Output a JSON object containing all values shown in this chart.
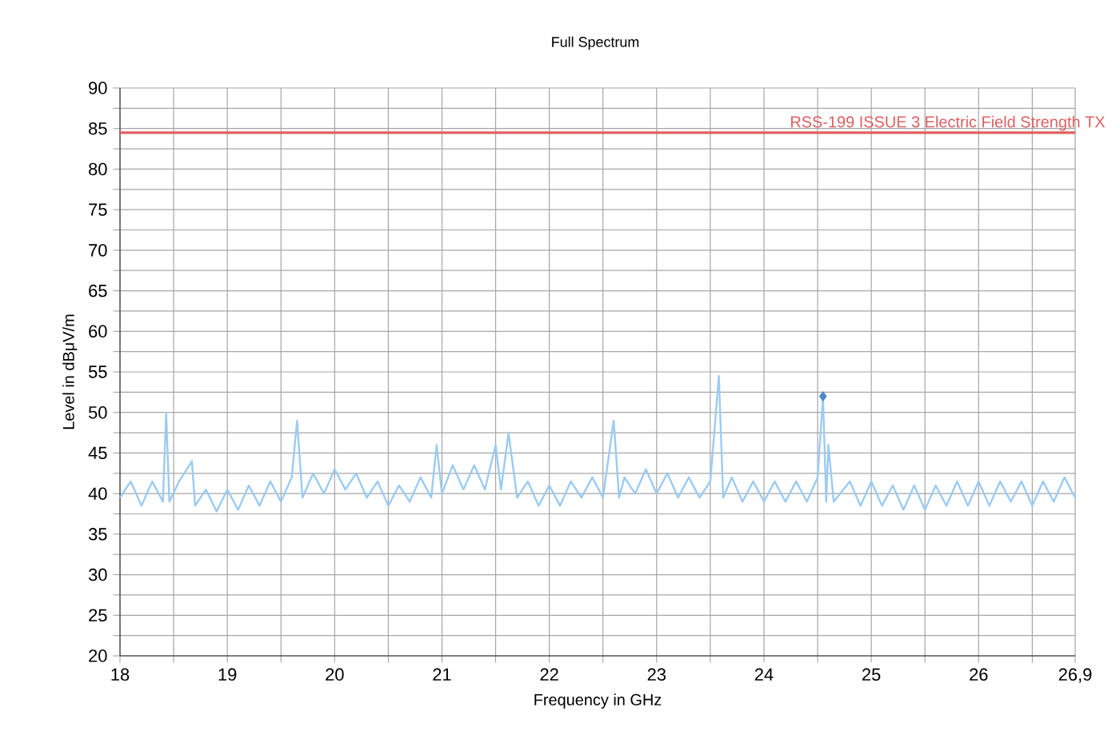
{
  "chart_data": {
    "type": "line",
    "title": "Full Spectrum",
    "xlabel": "Frequency in GHz",
    "ylabel": "Level in dBμV/m",
    "xlim": [
      18,
      26.9
    ],
    "ylim": [
      20,
      90
    ],
    "xticks": [
      18,
      {
        "value": 18.5,
        "label": null
      },
      19,
      {
        "value": 19.5,
        "label": null
      },
      20,
      {
        "value": 20.5,
        "label": null
      },
      21,
      {
        "value": 21.5,
        "label": null
      },
      22,
      {
        "value": 22.5,
        "label": null
      },
      23,
      {
        "value": 23.5,
        "label": null
      },
      24,
      {
        "value": 24.5,
        "label": null
      },
      25,
      {
        "value": 25.5,
        "label": null
      },
      26,
      {
        "value": 26.5,
        "label": null
      },
      {
        "value": 26.9,
        "label": "26,9"
      }
    ],
    "yticks": [
      20,
      {
        "value": 22.5,
        "label": null
      },
      25,
      {
        "value": 27.5,
        "label": null
      },
      30,
      {
        "value": 32.5,
        "label": null
      },
      35,
      {
        "value": 37.5,
        "label": null
      },
      40,
      {
        "value": 42.5,
        "label": null
      },
      45,
      {
        "value": 47.5,
        "label": null
      },
      50,
      {
        "value": 52.5,
        "label": null
      },
      55,
      {
        "value": 57.5,
        "label": null
      },
      60,
      {
        "value": 62.5,
        "label": null
      },
      65,
      {
        "value": 67.5,
        "label": null
      },
      70,
      {
        "value": 72.5,
        "label": null
      },
      75,
      {
        "value": 77.5,
        "label": null
      },
      80,
      {
        "value": 82.5,
        "label": null
      },
      85,
      {
        "value": 87.5,
        "label": null
      },
      90
    ],
    "grid": true,
    "legend": false,
    "ref_lines": [
      {
        "axis": "y",
        "value": 84.5,
        "label": "RSS-199 ISSUE 3 Electric Field Strength TX",
        "color": "#e06060",
        "line_style": "solid"
      }
    ],
    "series": [
      {
        "color": "#9ccbf2",
        "marker": "none",
        "line_style": "solid",
        "x": [
          18.0,
          18.1,
          18.2,
          18.3,
          18.4,
          18.43,
          18.46,
          18.55,
          18.67,
          18.7,
          18.8,
          18.9,
          19.0,
          19.1,
          19.2,
          19.3,
          19.4,
          19.5,
          19.6,
          19.65,
          19.7,
          19.8,
          19.9,
          20.0,
          20.1,
          20.2,
          20.3,
          20.4,
          20.5,
          20.6,
          20.7,
          20.8,
          20.9,
          20.95,
          21.0,
          21.1,
          21.2,
          21.3,
          21.4,
          21.5,
          21.55,
          21.62,
          21.7,
          21.8,
          21.9,
          22.0,
          22.1,
          22.2,
          22.3,
          22.4,
          22.5,
          22.6,
          22.65,
          22.7,
          22.8,
          22.9,
          23.0,
          23.1,
          23.2,
          23.3,
          23.4,
          23.5,
          23.58,
          23.62,
          23.7,
          23.8,
          23.9,
          24.0,
          24.1,
          24.2,
          24.3,
          24.4,
          24.5,
          24.55,
          24.58,
          24.6,
          24.65,
          24.8,
          24.9,
          25.0,
          25.1,
          25.2,
          25.3,
          25.4,
          25.5,
          25.6,
          25.7,
          25.8,
          25.9,
          26.0,
          26.1,
          26.2,
          26.3,
          26.4,
          26.5,
          26.6,
          26.7,
          26.8,
          26.9
        ],
        "values": [
          39.5,
          41.5,
          38.5,
          41.5,
          39,
          50,
          39,
          41.5,
          44,
          38.5,
          40.5,
          37.8,
          40.5,
          38,
          41,
          38.5,
          41.5,
          39,
          42,
          49,
          39.5,
          42.5,
          40,
          43,
          40.5,
          42.5,
          39.5,
          41.5,
          38.5,
          41,
          39,
          42,
          39.5,
          46,
          40,
          43.5,
          40.5,
          43.5,
          40.5,
          46,
          40.5,
          47.5,
          39.5,
          41.5,
          38.5,
          41,
          38.5,
          41.5,
          39.5,
          42,
          39.5,
          49,
          39.5,
          42,
          40,
          43,
          40,
          42.5,
          39.5,
          42,
          39.5,
          41.5,
          54.5,
          39.5,
          42,
          39,
          41.5,
          39,
          41.5,
          39,
          41.5,
          39,
          42,
          52,
          39,
          46,
          39,
          41.5,
          38.5,
          41.5,
          38.5,
          41,
          38,
          41,
          38,
          41,
          38.5,
          41.5,
          38.5,
          41.5,
          38.5,
          41.5,
          39,
          41.5,
          38.5,
          41.5,
          39,
          42,
          39.5
        ]
      },
      {
        "type": "scatter",
        "color": "#4a8cc4",
        "marker": "diamond",
        "x": [
          24.55
        ],
        "values": [
          52
        ]
      }
    ]
  }
}
